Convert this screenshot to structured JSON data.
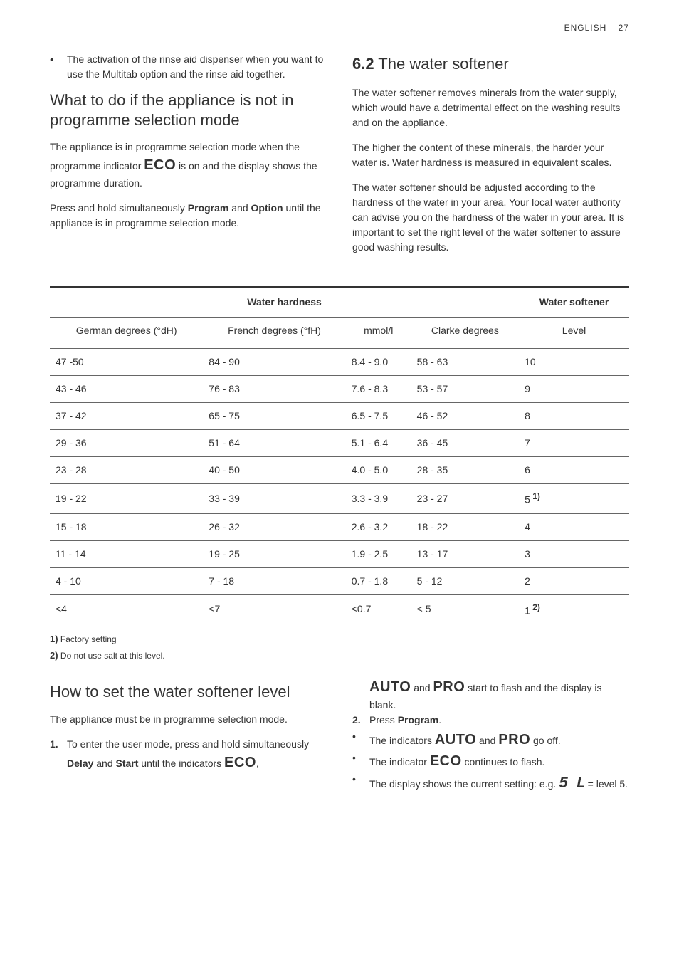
{
  "header": {
    "lang": "ENGLISH",
    "page": "27"
  },
  "top_left": {
    "bullet1": "The activation of the rinse aid dispenser when you want to use the Multitab option and the rinse aid together.",
    "h2a": "What to do if the appliance is not in programme selection mode",
    "p1a": "The appliance is in programme selection mode when the programme indicator ",
    "p1b": " is on and the display shows the programme duration.",
    "p2a": "Press and hold simultaneously ",
    "p2b": "Program",
    "p2c": " and ",
    "p2d": "Option",
    "p2e": " until the appliance is in programme selection mode."
  },
  "top_right": {
    "h2num": "6.2",
    "h2title": " The water softener",
    "p1": "The water softener removes minerals from the water supply, which would have a detrimental effect on the washing results and on the appliance.",
    "p2": "The higher the content of these minerals, the harder your water is. Water hardness is measured in equivalent scales.",
    "p3": "The water softener should be adjusted according to the hardness of the water in your area. Your local water authority can advise you on the hardness of the water in your area. It is important to set the right level of the water softener to assure good washing results."
  },
  "table": {
    "hardness_header": "Water hardness",
    "softener_header": "Water softener",
    "cols": [
      "German degrees (°dH)",
      "French degrees (°fH)",
      "mmol/l",
      "Clarke degrees",
      "Level"
    ],
    "rows": [
      [
        "47 -50",
        "84 - 90",
        "8.4 - 9.0",
        "58 - 63",
        "10"
      ],
      [
        "43 - 46",
        "76 - 83",
        "7.6 - 8.3",
        "53 - 57",
        "9"
      ],
      [
        "37 - 42",
        "65 - 75",
        "6.5 - 7.5",
        "46 - 52",
        "8"
      ],
      [
        "29 - 36",
        "51 - 64",
        "5.1 - 6.4",
        "36 - 45",
        "7"
      ],
      [
        "23 - 28",
        "40 - 50",
        "4.0 - 5.0",
        "28 - 35",
        "6"
      ],
      [
        "19 - 22",
        "33 - 39",
        "3.3 - 3.9",
        "23 - 27",
        "5"
      ],
      [
        "15 - 18",
        "26 - 32",
        "2.6 - 3.2",
        "18 - 22",
        "4"
      ],
      [
        "11 - 14",
        "19 - 25",
        "1.9 - 2.5",
        "13 - 17",
        "3"
      ],
      [
        "4 - 10",
        "7 - 18",
        "0.7 - 1.8",
        "5 - 12",
        "2"
      ],
      [
        "<4",
        "<7",
        "<0.7",
        "< 5",
        "1"
      ]
    ],
    "row5_sup": " 1)",
    "row9_sup": " 2)"
  },
  "footnotes": {
    "f1n": "1)",
    "f1t": " Factory setting",
    "f2n": "2)",
    "f2t": " Do not use salt at this level."
  },
  "bottom_left": {
    "h2": "How to set the water softener level",
    "p1": "The appliance must be in programme selection mode.",
    "step1num": "1.",
    "step1a": "To enter the user mode, press and hold simultaneously ",
    "step1b": "Delay",
    "step1c": " and ",
    "step1d": "Start",
    "step1e": " until the indicators ",
    "step1f": ","
  },
  "bottom_right": {
    "cont1a": " and ",
    "cont1b": " start to flash and the display is blank.",
    "step2num": "2.",
    "step2a": "Press ",
    "step2b": "Program",
    "step2c": ".",
    "b1a": "The indicators ",
    "b1b": " and ",
    "b1c": " go off.",
    "b2a": "The indicator ",
    "b2b": " continues to flash.",
    "b3a": "The display shows the current setting: e.g. ",
    "b3b": " = level 5."
  },
  "words": {
    "eco": "ECO",
    "auto": "AUTO",
    "pro": "PRO",
    "digital": "5 L"
  }
}
